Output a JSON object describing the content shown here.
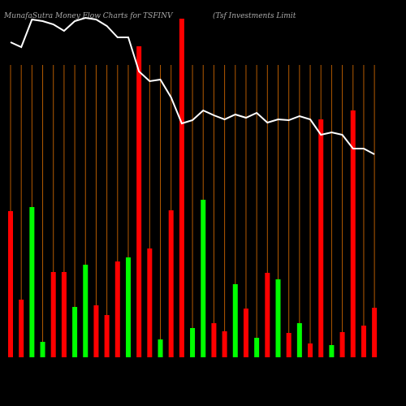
{
  "chart_data": {
    "type": "bar-line",
    "title": "MunafaSutra  Money Flow  Charts for TSFINV",
    "subtitle": "(Tsf Investments Limit",
    "categories": [
      null,
      null,
      null,
      null,
      null,
      null,
      null,
      null,
      null,
      null,
      null,
      null,
      null,
      null,
      null,
      null,
      null,
      null,
      null,
      null,
      null,
      null,
      null,
      null,
      null,
      null,
      null,
      null,
      null,
      null,
      null,
      null,
      null,
      null,
      null
    ],
    "ylim": [
      0,
      440
    ],
    "series": [
      {
        "kind": "bar",
        "values": [
          180,
          71,
          185,
          19,
          105,
          105,
          62,
          114,
          64,
          52,
          118,
          123,
          383,
          134,
          22,
          181,
          417,
          36,
          194,
          42,
          32,
          90,
          60,
          24,
          104,
          96,
          30,
          42,
          17,
          293,
          15,
          31,
          304,
          39,
          61
        ],
        "colors": [
          "#ff0000",
          "#ff0000",
          "#00ff00",
          "#00ff00",
          "#ff0000",
          "#ff0000",
          "#00ff00",
          "#00ff00",
          "#ff0000",
          "#ff0000",
          "#ff0000",
          "#00ff00",
          "#ff0000",
          "#ff0000",
          "#00ff00",
          "#ff0000",
          "#ff0000",
          "#00ff00",
          "#00ff00",
          "#ff0000",
          "#ff0000",
          "#00ff00",
          "#ff0000",
          "#00ff00",
          "#ff0000",
          "#00ff00",
          "#ff0000",
          "#00ff00",
          "#ff0000",
          "#ff0000",
          "#00ff00",
          "#ff0000",
          "#ff0000",
          "#ff0000",
          "#ff0000"
        ]
      },
      {
        "kind": "line",
        "color": "#ffffff",
        "values": [
          388,
          382,
          416,
          414,
          410,
          402,
          414,
          418,
          416,
          408,
          394,
          394,
          352,
          340,
          342,
          320,
          288,
          292,
          304,
          298,
          293,
          299,
          295,
          301,
          289,
          293,
          292,
          297,
          293,
          274,
          277,
          274,
          257,
          257,
          250
        ]
      }
    ],
    "grid_color": "#b35900"
  }
}
